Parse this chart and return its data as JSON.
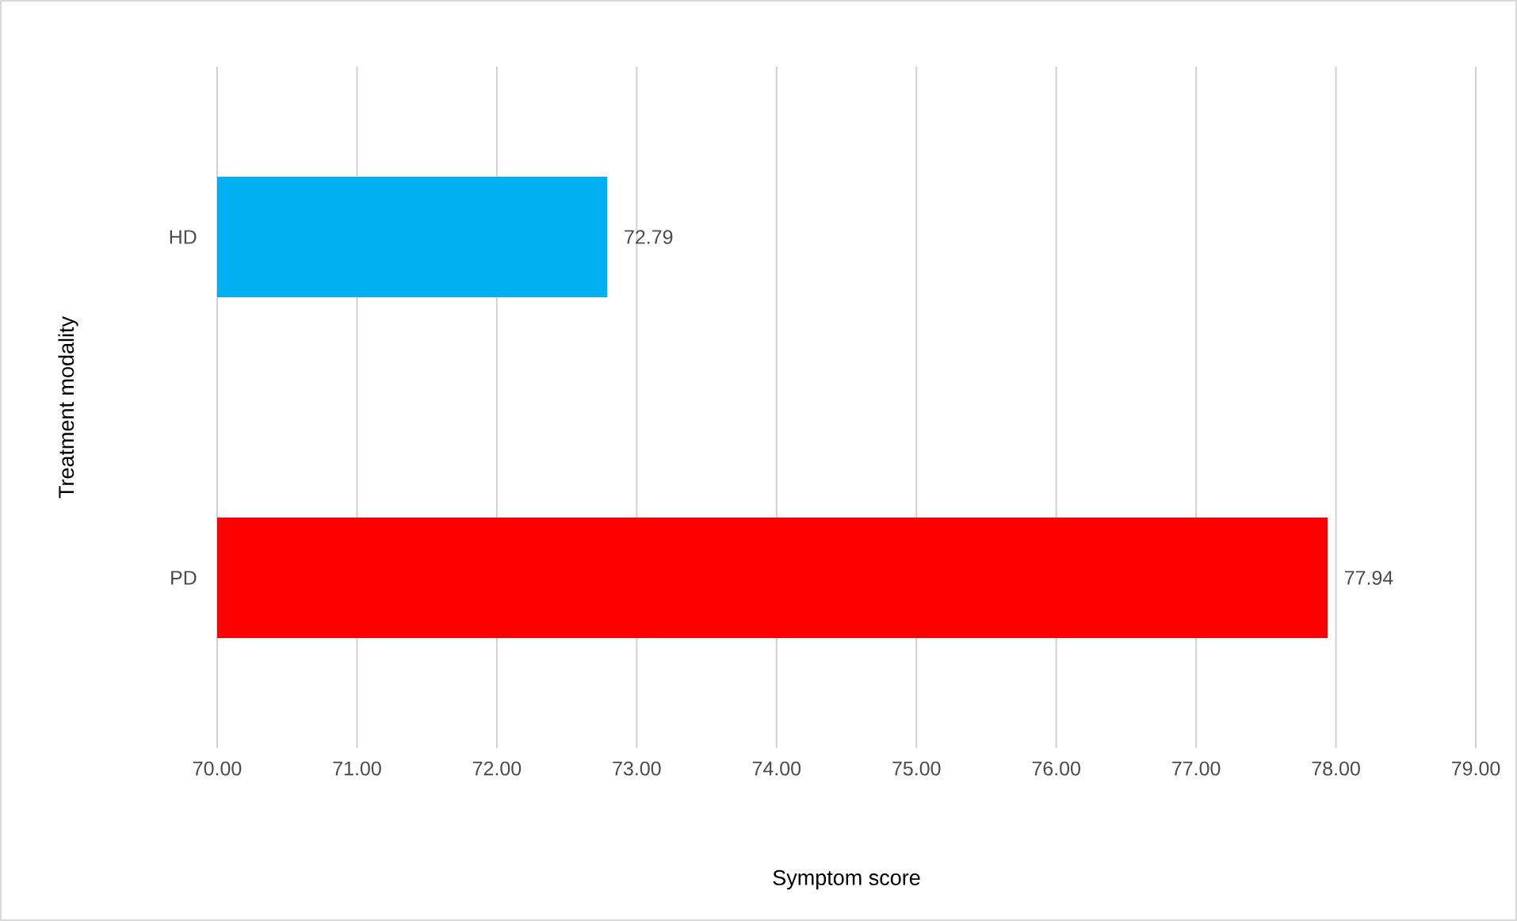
{
  "chart_data": {
    "type": "bar",
    "orientation": "horizontal",
    "xlabel": "Symptom score",
    "ylabel": "Treatment modality",
    "categories": [
      "HD",
      "PD"
    ],
    "values": [
      72.79,
      77.94
    ],
    "colors": [
      "#00b0f0",
      "#ff0000"
    ],
    "xlim": [
      70,
      79
    ],
    "xticks": [
      {
        "value": 70,
        "label": "70.00"
      },
      {
        "value": 71,
        "label": "71.00"
      },
      {
        "value": 72,
        "label": "72.00"
      },
      {
        "value": 73,
        "label": "73.00"
      },
      {
        "value": 74,
        "label": "74.00"
      },
      {
        "value": 75,
        "label": "75.00"
      },
      {
        "value": 76,
        "label": "76.00"
      },
      {
        "value": 77,
        "label": "77.00"
      },
      {
        "value": 78,
        "label": "78.00"
      },
      {
        "value": 79,
        "label": "79.00"
      }
    ],
    "grid": "x",
    "data_labels": true
  }
}
